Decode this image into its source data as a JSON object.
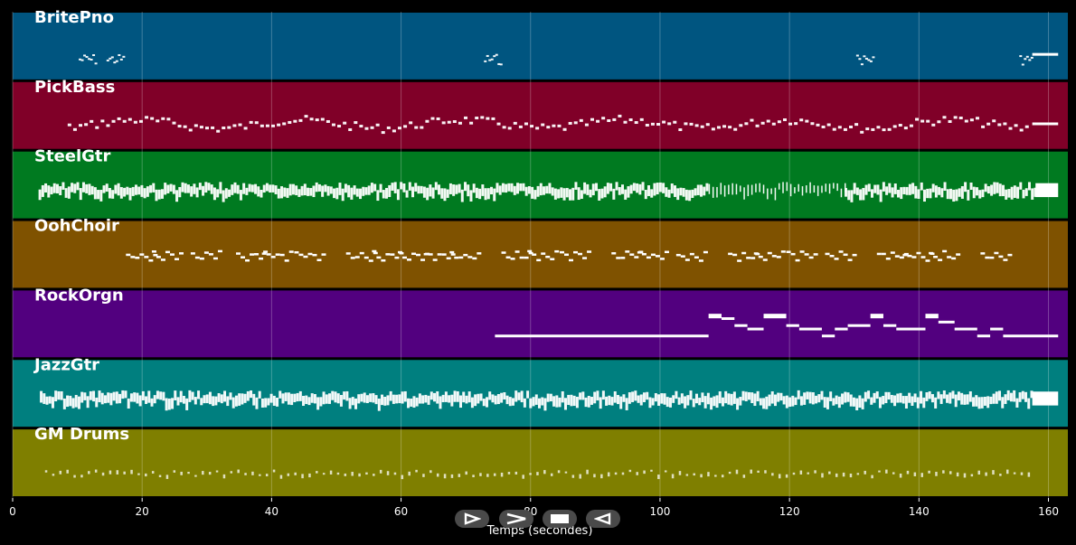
{
  "chart_data": {
    "type": "piano-roll",
    "xlabel": "Temps (secondes)",
    "xlim": [
      0,
      163
    ],
    "xticks": [
      0,
      20,
      40,
      60,
      80,
      100,
      120,
      140,
      160
    ],
    "grid": true,
    "tracks": [
      {
        "name": "BritePno",
        "color": "#005580",
        "note_runs": [
          {
            "start": 10.2,
            "end": 12.7,
            "pattern": "sparse"
          },
          {
            "start": 14.5,
            "end": 17.2,
            "pattern": "sparse"
          },
          {
            "start": 72.8,
            "end": 75.3,
            "pattern": "sparse"
          },
          {
            "start": 130.3,
            "end": 133.0,
            "pattern": "sparse"
          },
          {
            "start": 155.5,
            "end": 157.5,
            "pattern": "sparse"
          }
        ],
        "sustained": [
          {
            "start": 157.5,
            "end": 161.5
          }
        ]
      },
      {
        "name": "PickBass",
        "color": "#800028",
        "note_runs": [
          {
            "start": 8.5,
            "end": 157.0,
            "pattern": "walking"
          }
        ],
        "sustained": [
          {
            "start": 157.5,
            "end": 161.5
          }
        ]
      },
      {
        "name": "SteelGtr",
        "color": "#007A20",
        "note_runs": [
          {
            "start": 4.0,
            "end": 107.5,
            "pattern": "dense"
          },
          {
            "start": 107.5,
            "end": 128.5,
            "pattern": "strum"
          },
          {
            "start": 128.5,
            "end": 158.0,
            "pattern": "dense"
          }
        ],
        "sustained": [
          {
            "start": 158.0,
            "end": 161.5
          }
        ]
      },
      {
        "name": "OohChoir",
        "color": "#7F5200",
        "phrases": [
          17.5,
          21.5,
          27.5,
          34.5,
          38.5,
          43.5,
          51.5,
          55.5,
          59.5,
          63.5,
          67.5,
          75.5,
          79.5,
          84.5,
          92.5,
          96.5,
          102.5,
          110.5,
          114.5,
          119.5,
          125.5,
          133.5,
          137.5,
          141.5,
          149.5
        ]
      },
      {
        "name": "RockOrgn",
        "color": "#52007F",
        "segments": [
          {
            "start": 74.5,
            "end": 107.5,
            "level": 0.3
          },
          {
            "start": 107.5,
            "end": 109.5,
            "level": 0.6
          },
          {
            "start": 109.5,
            "end": 111.5,
            "level": 0.55
          },
          {
            "start": 111.5,
            "end": 113.5,
            "level": 0.45
          },
          {
            "start": 113.5,
            "end": 116.0,
            "level": 0.4
          },
          {
            "start": 116.0,
            "end": 119.5,
            "level": 0.6
          },
          {
            "start": 119.5,
            "end": 121.5,
            "level": 0.45
          },
          {
            "start": 121.5,
            "end": 125.0,
            "level": 0.4
          },
          {
            "start": 125.0,
            "end": 127.0,
            "level": 0.3
          },
          {
            "start": 127.0,
            "end": 129.0,
            "level": 0.4
          },
          {
            "start": 129.0,
            "end": 132.5,
            "level": 0.45
          },
          {
            "start": 132.5,
            "end": 134.5,
            "level": 0.6
          },
          {
            "start": 134.5,
            "end": 136.5,
            "level": 0.45
          },
          {
            "start": 136.5,
            "end": 141.0,
            "level": 0.4
          },
          {
            "start": 141.0,
            "end": 143.0,
            "level": 0.6
          },
          {
            "start": 143.0,
            "end": 145.5,
            "level": 0.5
          },
          {
            "start": 145.5,
            "end": 149.0,
            "level": 0.4
          },
          {
            "start": 149.0,
            "end": 151.0,
            "level": 0.3
          },
          {
            "start": 151.0,
            "end": 153.0,
            "level": 0.4
          },
          {
            "start": 153.0,
            "end": 161.5,
            "level": 0.3
          }
        ]
      },
      {
        "name": "JazzGtr",
        "color": "#007F7F",
        "note_runs": [
          {
            "start": 4.2,
            "end": 157.5,
            "pattern": "dense"
          }
        ],
        "sustained": [
          {
            "start": 157.5,
            "end": 161.5
          }
        ]
      },
      {
        "name": "GM Drums",
        "color": "#7F7F00",
        "note_runs": [
          {
            "start": 5.0,
            "end": 157.5,
            "pattern": "drums"
          }
        ]
      }
    ]
  },
  "controls": [
    {
      "name": "play-button",
      "icon": "play-icon"
    },
    {
      "name": "forward-button",
      "icon": "chevron-right-icon"
    },
    {
      "name": "stop-button",
      "icon": "stop-icon"
    },
    {
      "name": "rewind-button",
      "icon": "rewind-icon"
    }
  ]
}
